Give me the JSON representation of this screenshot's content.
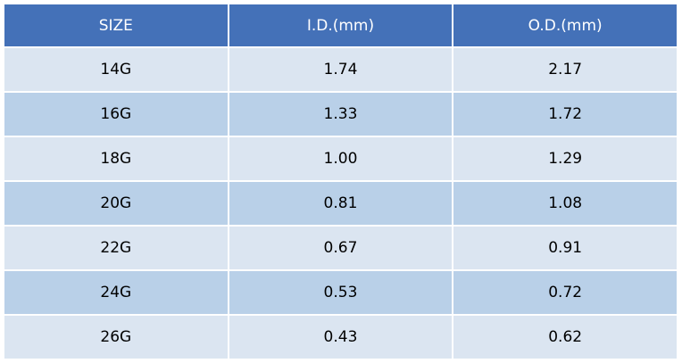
{
  "table": {
    "header": [
      "SIZE",
      "I.D.(mm)",
      "O.D.(mm)"
    ],
    "rows": [
      [
        "14G",
        "1.74",
        "2.17"
      ],
      [
        "16G",
        "1.33",
        "1.72"
      ],
      [
        "18G",
        "1.00",
        "1.29"
      ],
      [
        "20G",
        "0.81",
        "1.08"
      ],
      [
        "22G",
        "0.67",
        "0.91"
      ],
      [
        "24G",
        "0.53",
        "0.72"
      ],
      [
        "26G",
        "0.43",
        "0.62"
      ]
    ]
  }
}
